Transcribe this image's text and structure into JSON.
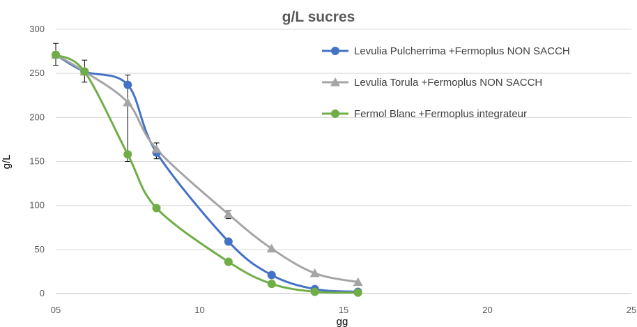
{
  "chart_data": {
    "type": "line",
    "title": "g/L sucres",
    "xlabel": "gg",
    "ylabel": "g/L",
    "xlim": [
      5,
      25
    ],
    "ylim": [
      0,
      300
    ],
    "x_ticks": [
      {
        "value": 5,
        "label": "05"
      },
      {
        "value": 10,
        "label": "10"
      },
      {
        "value": 15,
        "label": "15"
      },
      {
        "value": 20,
        "label": "20"
      },
      {
        "value": 25,
        "label": "25"
      }
    ],
    "y_ticks": [
      {
        "value": 0,
        "label": "0"
      },
      {
        "value": 50,
        "label": "50"
      },
      {
        "value": 100,
        "label": "100"
      },
      {
        "value": 150,
        "label": "150"
      },
      {
        "value": 200,
        "label": "200"
      },
      {
        "value": 250,
        "label": "250"
      },
      {
        "value": 300,
        "label": "300"
      }
    ],
    "grid": {
      "horizontal": true,
      "vertical": false
    },
    "legend_position": "top-right",
    "series": [
      {
        "name": "Levulia Pulcherrima +Fermoplus NON SACCH",
        "color": "#4472c4",
        "marker": "circle",
        "x": [
          5,
          6,
          7.5,
          8.5,
          11,
          12.5,
          14,
          15.5
        ],
        "y": [
          271,
          252,
          237,
          160,
          59,
          21,
          5,
          2
        ]
      },
      {
        "name": "Levulia Torula +Fermoplus NON SACCH",
        "color": "#a5a5a5",
        "marker": "triangle",
        "x": [
          5,
          6,
          7.5,
          8.5,
          11,
          12.5,
          14,
          15.5
        ],
        "y": [
          271,
          252,
          217,
          164,
          90,
          51,
          23,
          13
        ]
      },
      {
        "name": "Fermol Blanc +Fermoplus integrateur",
        "color": "#70ad47",
        "marker": "circle",
        "x": [
          5,
          6,
          7.5,
          8.5,
          11,
          12.5,
          14,
          15.5
        ],
        "y": [
          271,
          252,
          158,
          97,
          36,
          11,
          2,
          1
        ]
      }
    ],
    "error_bars": {
      "x": [
        5,
        6,
        7.5,
        8.5,
        11
      ],
      "low": [
        259,
        240,
        150,
        153,
        85
      ],
      "high": [
        284,
        265,
        248,
        171,
        94
      ]
    }
  }
}
